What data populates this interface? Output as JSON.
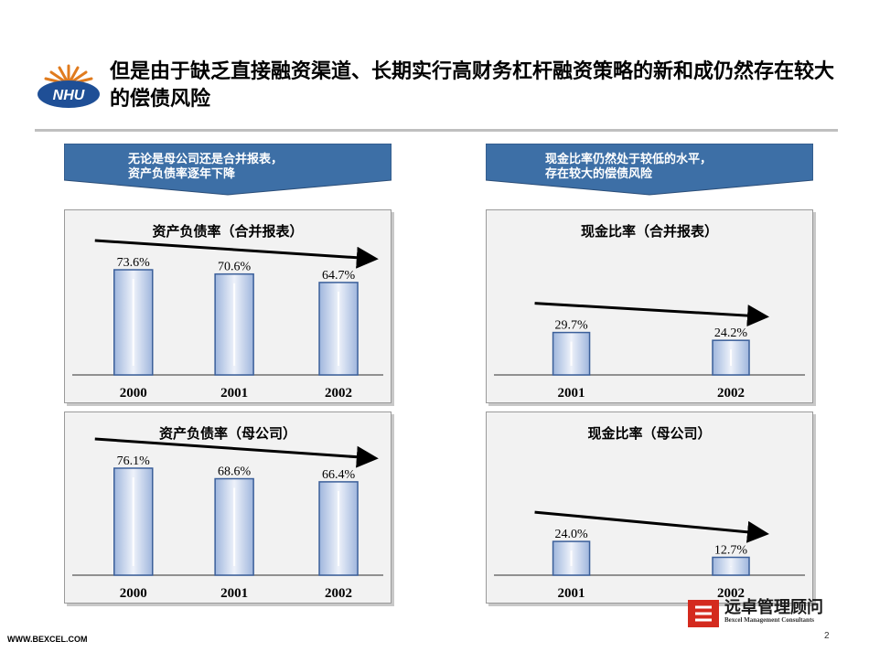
{
  "header": {
    "title": "但是由于缺乏直接融资渠道、长期实行高财务杠杆融资策略的新和成仍然存在较大的偿债风险",
    "logo_text": "NHU"
  },
  "callouts": {
    "left": "无论是母公司还是合并报表，\n资产负债率逐年下降",
    "right": "现金比率仍然处于较低的水平，\n存在较大的偿债风险"
  },
  "chart_data": [
    {
      "type": "bar",
      "title": "资产负债率（合并报表）",
      "categories": [
        "2000",
        "2001",
        "2002"
      ],
      "values": [
        73.6,
        70.6,
        64.7
      ],
      "labels": [
        "73.6%",
        "70.6%",
        "64.7%"
      ],
      "ylim": [
        0,
        80
      ]
    },
    {
      "type": "bar",
      "title": "资产负债率（母公司）",
      "categories": [
        "2000",
        "2001",
        "2002"
      ],
      "values": [
        76.1,
        68.6,
        66.4
      ],
      "labels": [
        "76.1%",
        "68.6%",
        "66.4%"
      ],
      "ylim": [
        0,
        80
      ]
    },
    {
      "type": "bar",
      "title": "现金比率（合并报表）",
      "categories": [
        "2001",
        "2002"
      ],
      "values": [
        29.7,
        24.2
      ],
      "labels": [
        "29.7%",
        "24.2%"
      ],
      "ylim": [
        0,
        80
      ]
    },
    {
      "type": "bar",
      "title": "现金比率（母公司）",
      "categories": [
        "2001",
        "2002"
      ],
      "values": [
        24.0,
        12.7
      ],
      "labels": [
        "24.0%",
        "12.7%"
      ],
      "ylim": [
        0,
        80
      ]
    }
  ],
  "footer": {
    "website": "WWW.BEXCEL.COM",
    "page": "2",
    "brand_name": "远卓管理顾问",
    "brand_sub": "Bexcel Management Consultants"
  },
  "colors": {
    "callout": "#3d6fa6",
    "bar_edge": "#3b5f9a",
    "bar_light": "#eef2fa",
    "bar_mid": "#9fb6dd"
  }
}
